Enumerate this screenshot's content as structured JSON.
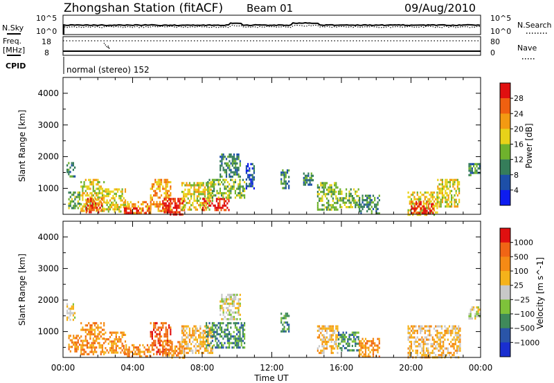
{
  "header": {
    "station": "Zhongshan Station (fitACF)",
    "beam": "Beam 01",
    "date": "09/Aug/2010"
  },
  "top_panels": {
    "nsky_label": "N.Sky",
    "nsky_top": "10^5",
    "nsky_bottom": "10^0",
    "nsearch_label": "N.Search",
    "nsearch_top": "10^5",
    "nsearch_bottom": "10^0",
    "freq_label": "Freq.",
    "freq_unit": "[MHz]",
    "freq_top": "18",
    "freq_bottom": "8",
    "nave_label": "Nave",
    "nave_top": "80",
    "nave_bottom": "0",
    "cpid_label": "CPID",
    "cpid_text": "normal (stereo) 152"
  },
  "chart_data": [
    {
      "type": "heatmap",
      "name": "power",
      "ylabel": "Slant Range [km]",
      "ylim": [
        180,
        4500
      ],
      "yticks": [
        "1000",
        "2000",
        "3000",
        "4000"
      ],
      "xlim": [
        0,
        24
      ],
      "xticks": [
        "00:00",
        "04:00",
        "08:00",
        "12:00",
        "16:00",
        "20:00",
        "00:00"
      ],
      "colorbar": {
        "label": "Power [dB]",
        "labels": [
          "4",
          "8",
          "12",
          "16",
          "20",
          "24",
          "28"
        ],
        "colors": [
          "#0d1cf0",
          "#1d4fa8",
          "#357d5a",
          "#6fb22d",
          "#e8d219",
          "#f39a12",
          "#f06010",
          "#e01010"
        ]
      },
      "echo_regions": [
        {
          "t0": 0.2,
          "t1": 0.7,
          "r0": 1400,
          "r1": 1900,
          "level": 2
        },
        {
          "t0": 0.3,
          "t1": 1.0,
          "r0": 400,
          "r1": 900,
          "level": 3
        },
        {
          "t0": 1.0,
          "t1": 2.4,
          "r0": 300,
          "r1": 1300,
          "level": 4
        },
        {
          "t0": 1.3,
          "t1": 2.2,
          "r0": 250,
          "r1": 700,
          "level": 6
        },
        {
          "t0": 2.4,
          "t1": 3.6,
          "r0": 300,
          "r1": 1000,
          "level": 4
        },
        {
          "t0": 3.5,
          "t1": 5.0,
          "r0": 200,
          "r1": 600,
          "level": 5
        },
        {
          "t0": 3.5,
          "t1": 5.0,
          "r0": 200,
          "r1": 400,
          "level": 7
        },
        {
          "t0": 5.0,
          "t1": 6.2,
          "r0": 300,
          "r1": 1300,
          "level": 5
        },
        {
          "t0": 5.7,
          "t1": 7.0,
          "r0": 200,
          "r1": 700,
          "level": 7
        },
        {
          "t0": 6.8,
          "t1": 8.6,
          "r0": 350,
          "r1": 1200,
          "level": 4
        },
        {
          "t0": 8.0,
          "t1": 9.5,
          "r0": 300,
          "r1": 700,
          "level": 7
        },
        {
          "t0": 8.2,
          "t1": 10.4,
          "r0": 700,
          "r1": 1300,
          "level": 3
        },
        {
          "t0": 9.0,
          "t1": 10.2,
          "r0": 1400,
          "r1": 2100,
          "level": 2
        },
        {
          "t0": 10.5,
          "t1": 11.0,
          "r0": 1000,
          "r1": 1800,
          "level": 1
        },
        {
          "t0": 12.5,
          "t1": 13.0,
          "r0": 1000,
          "r1": 1600,
          "level": 2
        },
        {
          "t0": 13.8,
          "t1": 14.4,
          "r0": 1100,
          "r1": 1500,
          "level": 2
        },
        {
          "t0": 14.6,
          "t1": 15.8,
          "r0": 300,
          "r1": 1200,
          "level": 3
        },
        {
          "t0": 15.8,
          "t1": 17.0,
          "r0": 400,
          "r1": 1000,
          "level": 3
        },
        {
          "t0": 17.0,
          "t1": 18.2,
          "r0": 200,
          "r1": 800,
          "level": 2
        },
        {
          "t0": 19.8,
          "t1": 21.5,
          "r0": 200,
          "r1": 900,
          "level": 4
        },
        {
          "t0": 20.0,
          "t1": 21.3,
          "r0": 200,
          "r1": 600,
          "level": 7
        },
        {
          "t0": 21.5,
          "t1": 22.8,
          "r0": 400,
          "r1": 1300,
          "level": 4
        },
        {
          "t0": 23.3,
          "t1": 24.0,
          "r0": 1400,
          "r1": 1800,
          "level": 2
        }
      ]
    },
    {
      "type": "heatmap",
      "name": "velocity",
      "ylabel": "Slant Range [km]",
      "ylim": [
        180,
        4500
      ],
      "yticks": [
        "1000",
        "2000",
        "3000",
        "4000"
      ],
      "xlim": [
        0,
        24
      ],
      "xticks": [
        "00:00",
        "04:00",
        "08:00",
        "12:00",
        "16:00",
        "20:00",
        "00:00"
      ],
      "xlabel": "Time UT",
      "colorbar": {
        "label": "Velocity [m s^-1]",
        "labels": [
          "1000",
          "500",
          "100",
          "25",
          "−25",
          "−100",
          "−500",
          "−1000"
        ],
        "colors": [
          "#1a2fd0",
          "#2a55a8",
          "#3f8a5a",
          "#7ec23a",
          "#c8c8c8",
          "#f5b21a",
          "#f58a15",
          "#f06515",
          "#e01010"
        ]
      },
      "echo_regions": [
        {
          "t0": 0.2,
          "t1": 0.7,
          "r0": 1400,
          "r1": 1900,
          "level": 4
        },
        {
          "t0": 0.3,
          "t1": 1.0,
          "r0": 400,
          "r1": 900,
          "level": 6
        },
        {
          "t0": 1.0,
          "t1": 2.4,
          "r0": 300,
          "r1": 1300,
          "level": 6
        },
        {
          "t0": 2.4,
          "t1": 3.6,
          "r0": 300,
          "r1": 1000,
          "level": 6
        },
        {
          "t0": 3.5,
          "t1": 5.0,
          "r0": 200,
          "r1": 600,
          "level": 6
        },
        {
          "t0": 5.0,
          "t1": 6.2,
          "r0": 300,
          "r1": 1300,
          "level": 7
        },
        {
          "t0": 5.7,
          "t1": 7.0,
          "r0": 200,
          "r1": 700,
          "level": 6
        },
        {
          "t0": 6.8,
          "t1": 8.6,
          "r0": 350,
          "r1": 1200,
          "level": 5
        },
        {
          "t0": 8.2,
          "t1": 10.4,
          "r0": 500,
          "r1": 1300,
          "level": 2
        },
        {
          "t0": 9.0,
          "t1": 10.2,
          "r0": 1400,
          "r1": 2200,
          "level": 4
        },
        {
          "t0": 12.5,
          "t1": 13.0,
          "r0": 1000,
          "r1": 1600,
          "level": 2
        },
        {
          "t0": 14.6,
          "t1": 15.8,
          "r0": 300,
          "r1": 1200,
          "level": 5
        },
        {
          "t0": 15.8,
          "t1": 17.0,
          "r0": 400,
          "r1": 1000,
          "level": 2
        },
        {
          "t0": 17.0,
          "t1": 18.2,
          "r0": 200,
          "r1": 800,
          "level": 6
        },
        {
          "t0": 19.8,
          "t1": 22.8,
          "r0": 200,
          "r1": 1200,
          "level": 5
        },
        {
          "t0": 23.3,
          "t1": 24.0,
          "r0": 1400,
          "r1": 1800,
          "level": 4
        }
      ]
    }
  ]
}
